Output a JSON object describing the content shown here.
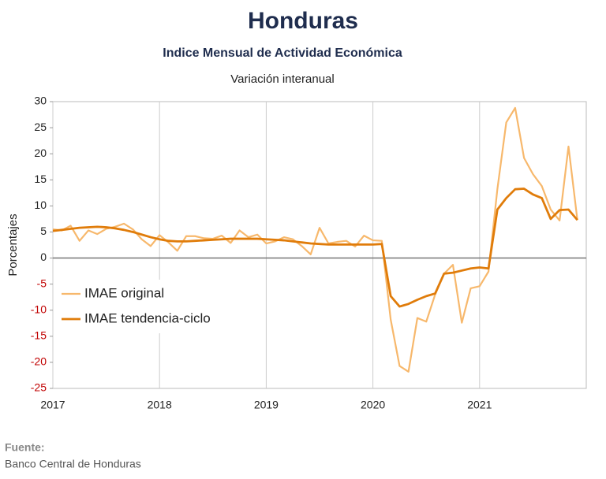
{
  "chart_data": {
    "type": "line",
    "title": "Honduras",
    "subtitle": "Indice Mensual de  Actividad Económica",
    "subtitle2": "Variación interanual",
    "y_label": "Porcentajes",
    "source_label": "Fuente:",
    "source": "Banco Central de Honduras",
    "categories": [
      "2017",
      null,
      null,
      null,
      null,
      null,
      null,
      null,
      null,
      null,
      null,
      null,
      "2018",
      null,
      null,
      null,
      null,
      null,
      null,
      null,
      null,
      null,
      null,
      null,
      "2019",
      null,
      null,
      null,
      null,
      null,
      null,
      null,
      null,
      null,
      null,
      null,
      "2020",
      null,
      null,
      null,
      null,
      null,
      null,
      null,
      null,
      null,
      null,
      null,
      "2021",
      null,
      null,
      null,
      null,
      null,
      null,
      null,
      null,
      null,
      null,
      null
    ],
    "series": [
      {
        "name": "IMAE original",
        "color": "#f7b86c",
        "width": 2.2,
        "values": [
          5.5,
          5.3,
          6.2,
          3.3,
          5.3,
          4.6,
          5.6,
          6.0,
          6.6,
          5.5,
          3.6,
          2.3,
          4.4,
          3.0,
          1.4,
          4.2,
          4.2,
          3.8,
          3.7,
          4.3,
          2.9,
          5.3,
          4.0,
          4.5,
          2.8,
          3.2,
          4.0,
          3.6,
          2.3,
          0.7,
          5.8,
          2.8,
          3.1,
          3.3,
          2.2,
          4.3,
          3.4,
          3.3,
          -11.8,
          -20.7,
          -21.8,
          -11.5,
          -12.2,
          -7.0,
          -3.0,
          -1.3,
          -12.4,
          -5.8,
          -5.4,
          -2.6,
          13.2,
          26.0,
          28.8,
          19.2,
          16.1,
          13.8,
          9.3,
          7.2,
          21.4,
          7.3
        ]
      },
      {
        "name": "IMAE tendencia-ciclo",
        "color": "#e07c0a",
        "width": 2.8,
        "values": [
          5.2,
          5.4,
          5.6,
          5.8,
          5.9,
          6.0,
          5.9,
          5.7,
          5.4,
          5.0,
          4.5,
          4.0,
          3.6,
          3.3,
          3.2,
          3.2,
          3.3,
          3.4,
          3.5,
          3.6,
          3.7,
          3.7,
          3.7,
          3.7,
          3.6,
          3.5,
          3.4,
          3.2,
          3.0,
          2.8,
          2.7,
          2.6,
          2.6,
          2.6,
          2.6,
          2.6,
          2.6,
          2.7,
          -7.3,
          -9.3,
          -8.8,
          -8.0,
          -7.3,
          -6.8,
          -3.0,
          -2.8,
          -2.4,
          -2.0,
          -1.8,
          -2.0,
          9.3,
          11.5,
          13.2,
          13.3,
          12.2,
          11.5,
          7.5,
          9.2,
          9.3,
          7.3
        ]
      }
    ],
    "ylim": [
      -25,
      30
    ],
    "yticks": [
      30,
      25,
      20,
      15,
      10,
      5,
      0,
      -5,
      -10,
      -15,
      -20,
      -25
    ],
    "negative_tick_color": "#c00000",
    "grid": true
  }
}
